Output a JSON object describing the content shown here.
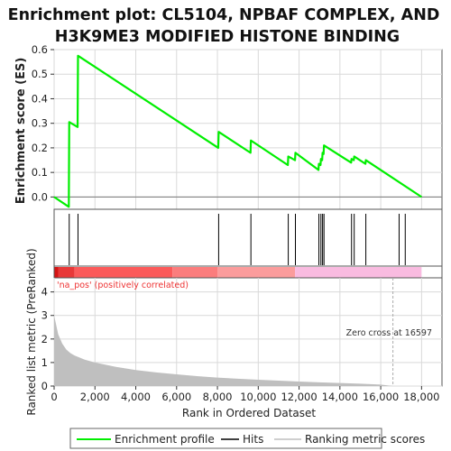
{
  "chart_data": {
    "type": "line",
    "title_lines": [
      "Enrichment plot: CL5104, NPBAF COMPLEX, AND",
      "H3K9ME3 MODIFIED HISTONE BINDING"
    ],
    "xlabel": "Rank in Ordered Dataset",
    "xlim": [
      0,
      19000
    ],
    "x_ticks": [
      0,
      2000,
      4000,
      6000,
      8000,
      10000,
      12000,
      14000,
      16000,
      18000
    ],
    "x_tick_labels": [
      "0",
      "2,000",
      "4,000",
      "6,000",
      "8,000",
      "10,000",
      "12,000",
      "14,000",
      "16,000",
      "18,000"
    ],
    "panels": {
      "enrichment": {
        "ylabel": "Enrichment score (ES)",
        "ylim": [
          -0.05,
          0.6
        ],
        "y_ticks": [
          0.0,
          0.1,
          0.2,
          0.3,
          0.4,
          0.5,
          0.6
        ],
        "y_tick_labels": [
          "0.0",
          "0.1",
          "0.2",
          "0.3",
          "0.4",
          "0.5",
          "0.6"
        ],
        "series": [
          {
            "name": "Enrichment profile",
            "color": "#00ee00",
            "x": [
              0,
              720,
              740,
              1150,
              1170,
              8040,
              8060,
              9620,
              9640,
              11450,
              11470,
              11800,
              11820,
              12950,
              12970,
              13050,
              13070,
              13130,
              13150,
              13200,
              13220,
              14550,
              14570,
              14680,
              14700,
              15250,
              15270,
              18000
            ],
            "y": [
              0.0,
              -0.04,
              0.305,
              0.285,
              0.575,
              0.2,
              0.265,
              0.18,
              0.23,
              0.13,
              0.165,
              0.15,
              0.18,
              0.11,
              0.135,
              0.13,
              0.155,
              0.15,
              0.18,
              0.175,
              0.21,
              0.14,
              0.155,
              0.15,
              0.165,
              0.135,
              0.15,
              0.0
            ]
          }
        ]
      },
      "hits": {
        "name": "Hits",
        "positions": [
          740,
          1170,
          8060,
          9640,
          11470,
          11820,
          12970,
          13070,
          13150,
          13220,
          14570,
          14700,
          15270,
          16900,
          17200
        ]
      },
      "ranking_bar": {
        "segments": [
          {
            "from": 0,
            "to": 200,
            "color": "#d41414"
          },
          {
            "from": 200,
            "to": 1000,
            "color": "#e83838"
          },
          {
            "from": 1000,
            "to": 5800,
            "color": "#fb5a5a"
          },
          {
            "from": 5800,
            "to": 8000,
            "color": "#fb7d7d"
          },
          {
            "from": 8000,
            "to": 11800,
            "color": "#fb9c9c"
          },
          {
            "from": 11800,
            "to": 18000,
            "color": "#f9bbe0"
          }
        ]
      },
      "ranked_metric": {
        "ylabel": "Ranked list metric (PreRanked)",
        "ylim": [
          0,
          4.6
        ],
        "y_ticks": [
          0,
          1,
          2,
          3,
          4
        ],
        "y_tick_labels": [
          "0",
          "1",
          "2",
          "3",
          "4"
        ],
        "series_name": "Ranking metric scores",
        "x": [
          0,
          100,
          200,
          400,
          600,
          800,
          1000,
          1500,
          2000,
          3000,
          4000,
          5000,
          6000,
          7000,
          8000,
          9000,
          10000,
          11000,
          12000,
          13000,
          14000,
          15000,
          16000,
          16597,
          17000,
          18000
        ],
        "y": [
          3.0,
          2.6,
          2.2,
          1.8,
          1.55,
          1.4,
          1.3,
          1.12,
          1.0,
          0.82,
          0.68,
          0.58,
          0.5,
          0.42,
          0.36,
          0.31,
          0.27,
          0.23,
          0.19,
          0.16,
          0.13,
          0.1,
          0.06,
          0.0,
          -0.02,
          -0.05
        ],
        "zero_cross": 16597,
        "zero_cross_label": "Zero cross at 16597",
        "positive_label": "'na_pos' (positively correlated)"
      }
    },
    "legend": [
      "Enrichment profile",
      "Hits",
      "Ranking metric scores"
    ],
    "legend_position": "bottom"
  },
  "colors": {
    "profile": "#00ee00",
    "hit": "#000000",
    "metric_fill": "#bfbfbf",
    "positive_label": "#ee3333",
    "zero_cross_line": "#aaaaaa",
    "grid": "#d9d9d9"
  }
}
